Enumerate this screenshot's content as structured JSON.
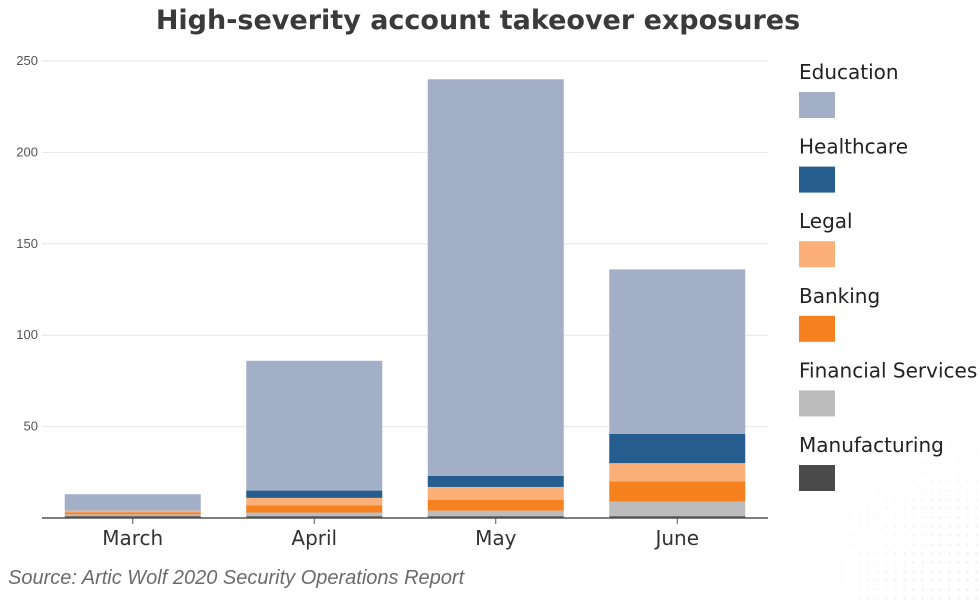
{
  "chart_data": {
    "type": "bar",
    "stacked": true,
    "title": "High-severity account takeover exposures",
    "xlabel": "",
    "ylabel": "",
    "categories": [
      "March",
      "April",
      "May",
      "June"
    ],
    "ylim": [
      0,
      250
    ],
    "yticks": [
      50,
      100,
      150,
      200,
      250
    ],
    "grid": true,
    "legend_position": "right",
    "series": [
      {
        "name": "Manufacturing",
        "color": "#4a4a4a",
        "values": [
          1,
          1,
          1,
          1
        ]
      },
      {
        "name": "Financial Services",
        "color": "#bcbcbc",
        "values": [
          1,
          2,
          3,
          8
        ]
      },
      {
        "name": "Banking",
        "color": "#f5821f",
        "values": [
          1,
          4,
          6,
          11
        ]
      },
      {
        "name": "Legal",
        "color": "#fbb07a",
        "values": [
          1,
          4,
          7,
          10
        ]
      },
      {
        "name": "Healthcare",
        "color": "#245d8e",
        "values": [
          0,
          4,
          6,
          16
        ]
      },
      {
        "name": "Education",
        "color": "#a2afc7",
        "values": [
          9,
          71,
          217,
          90
        ]
      }
    ],
    "legend_order": [
      "Education",
      "Healthcare",
      "Legal",
      "Banking",
      "Financial Services",
      "Manufacturing"
    ],
    "source": "Source: Artic Wolf 2020 Security Operations Report"
  }
}
